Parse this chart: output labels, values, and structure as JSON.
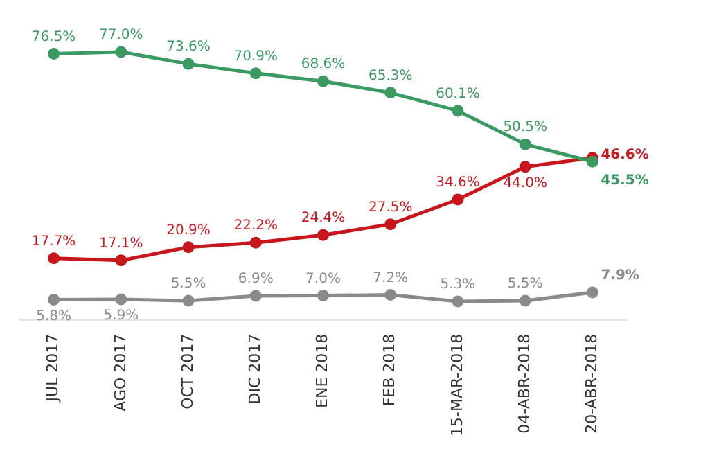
{
  "chart_data": {
    "type": "line",
    "categories": [
      "JUL 2017",
      "AGO 2017",
      "OCT 2017",
      "DIC 2017",
      "ENE 2018",
      "FEB 2018",
      "15-MAR-2018",
      "04-ABR-2018",
      "20-ABR-2018"
    ],
    "series": [
      {
        "color": "#3a9a62",
        "values": [
          76.5,
          77.0,
          73.6,
          70.9,
          68.6,
          65.3,
          60.1,
          50.5,
          45.5
        ],
        "value_labels": [
          "76.5%",
          "77.0%",
          "73.6%",
          "70.9%",
          "68.6%",
          "65.3%",
          "60.1%",
          "50.5%",
          "45.5%"
        ]
      },
      {
        "color": "#c8161d",
        "values": [
          17.7,
          17.1,
          20.9,
          22.2,
          24.4,
          27.5,
          34.6,
          44.0,
          46.6
        ],
        "value_labels": [
          "17.7%",
          "17.1%",
          "20.9%",
          "22.2%",
          "24.4%",
          "27.5%",
          "34.6%",
          "44.0%",
          "46.6%"
        ]
      },
      {
        "color": "#8a8a8a",
        "values": [
          5.8,
          5.9,
          5.5,
          6.9,
          7.0,
          7.2,
          5.3,
          5.5,
          7.9
        ],
        "value_labels": [
          "5.8%",
          "5.9%",
          "5.5%",
          "6.9%",
          "7.0%",
          "7.2%",
          "5.3%",
          "5.5%",
          "7.9%"
        ]
      }
    ],
    "marker": "circle",
    "legend": false,
    "grid": false
  }
}
